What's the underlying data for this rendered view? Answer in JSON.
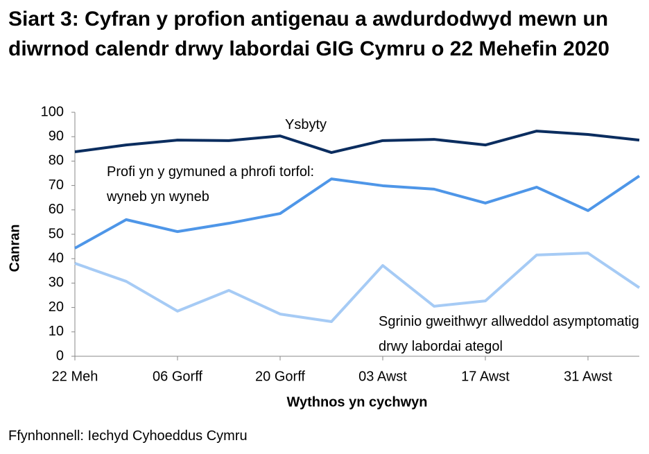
{
  "chart_data": {
    "type": "line",
    "title": "Siart 3: Cyfran y profion antigenau a awdurdodwyd mewn un diwrnod calendr drwy labordai GIG Cymru o 22 Mehefin 2020",
    "x_label": "Wythnos yn cychwyn",
    "y_label": "Canran",
    "source": "Ffynhonnell: Iechyd Cyhoeddus Cymru",
    "categories": [
      "22 Meh",
      null,
      "06 Gorff",
      null,
      "20 Gorff",
      null,
      "03 Awst",
      null,
      "17 Awst",
      null,
      "31 Awst",
      null
    ],
    "ylim": [
      0,
      100
    ],
    "yticks": [
      0,
      10,
      20,
      30,
      40,
      50,
      60,
      70,
      80,
      90,
      100
    ],
    "grid": false,
    "series": [
      {
        "name": "Ysbyty",
        "color": "#0b2d5f",
        "values": [
          83.8,
          86.6,
          88.6,
          88.4,
          90.3,
          83.5,
          88.4,
          88.9,
          86.6,
          92.3,
          90.9,
          88.6
        ]
      },
      {
        "name": "Profi yn y gymuned a phrofi torfol: wyneb yn wyneb",
        "color": "#4e96e8",
        "values": [
          44.3,
          56.0,
          51.1,
          54.5,
          58.5,
          72.7,
          69.9,
          68.5,
          62.8,
          69.3,
          59.7,
          73.9
        ]
      },
      {
        "name": "Sgrinio gweithwyr allweddol asymptomatig drwy labordai ategol",
        "color": "#a6cbf5",
        "values": [
          38.1,
          30.7,
          18.5,
          27.0,
          17.3,
          14.2,
          37.2,
          20.5,
          22.7,
          41.5,
          42.3,
          28.1
        ]
      }
    ]
  }
}
